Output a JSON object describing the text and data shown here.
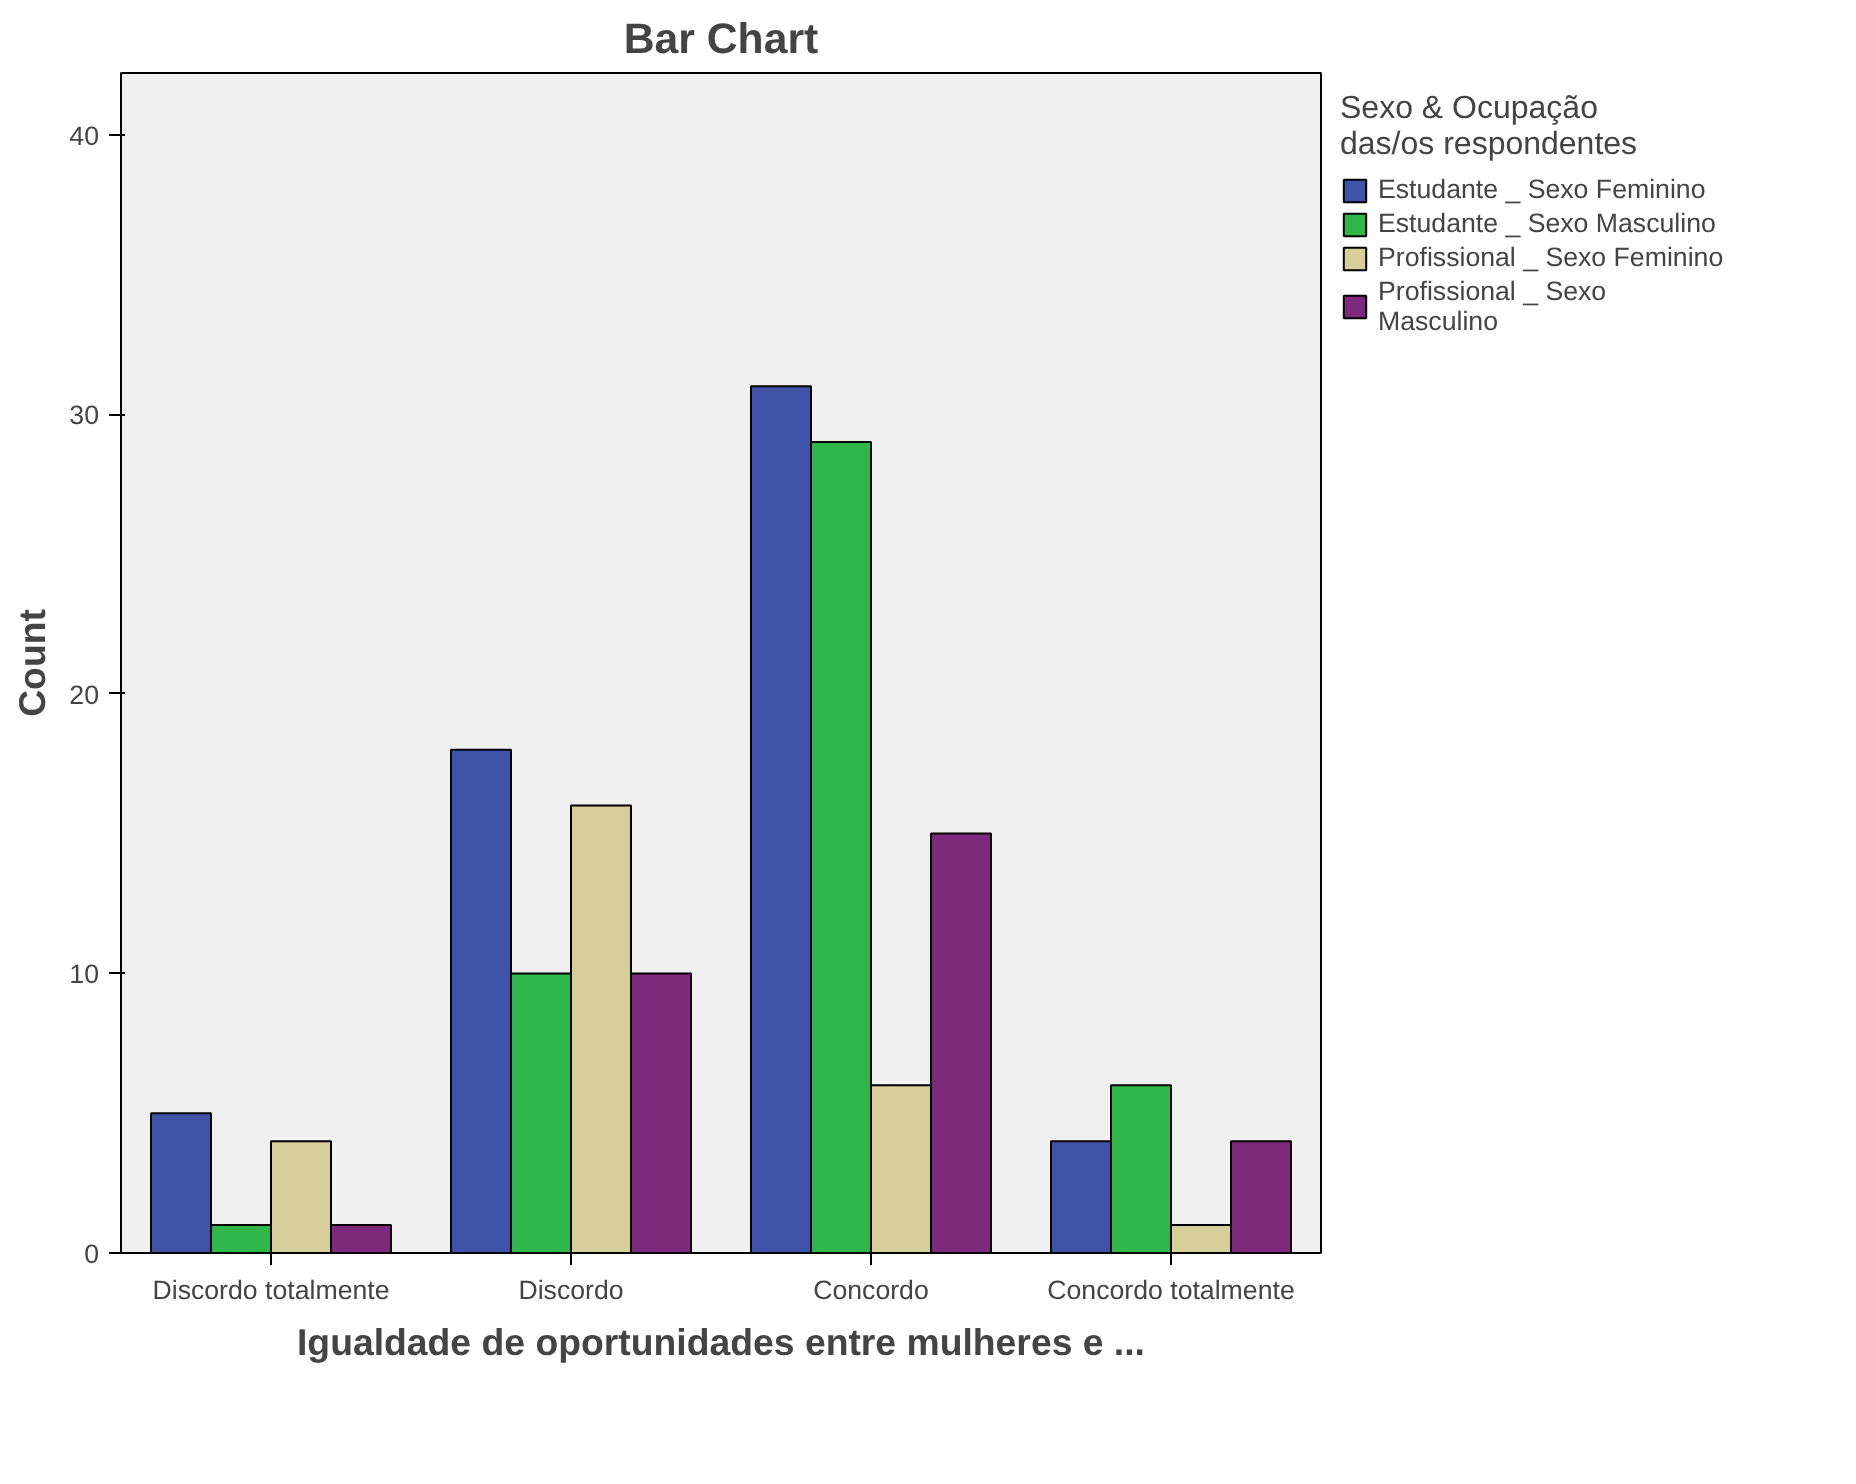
{
  "chart_data": {
    "type": "bar",
    "title": "Bar Chart",
    "xlabel": "Igualdade de oportunidades entre mulheres e ...",
    "ylabel": "Count",
    "legend_title": "Sexo & Ocupação das/os respondentes",
    "categories": [
      "Discordo totalmente",
      "Discordo",
      "Concordo",
      "Concordo totalmente"
    ],
    "series": [
      {
        "name": "Estudante _ Sexo Feminino",
        "color": "#3f54a8",
        "values": [
          5,
          18,
          31,
          4
        ]
      },
      {
        "name": "Estudante _ Sexo Masculino",
        "color": "#2fb74a",
        "values": [
          1,
          10,
          29,
          6
        ]
      },
      {
        "name": "Profissional _ Sexo Feminino",
        "color": "#d6cf9a",
        "values": [
          4,
          16,
          6,
          1
        ]
      },
      {
        "name": "Profissional _ Sexo Masculino",
        "color": "#7d2a7c",
        "values": [
          1,
          10,
          15,
          4
        ]
      }
    ],
    "ylim": [
      0,
      42.2
    ],
    "yticks": [
      0,
      10,
      20,
      30,
      40
    ],
    "grid": false,
    "legend": "top right"
  }
}
